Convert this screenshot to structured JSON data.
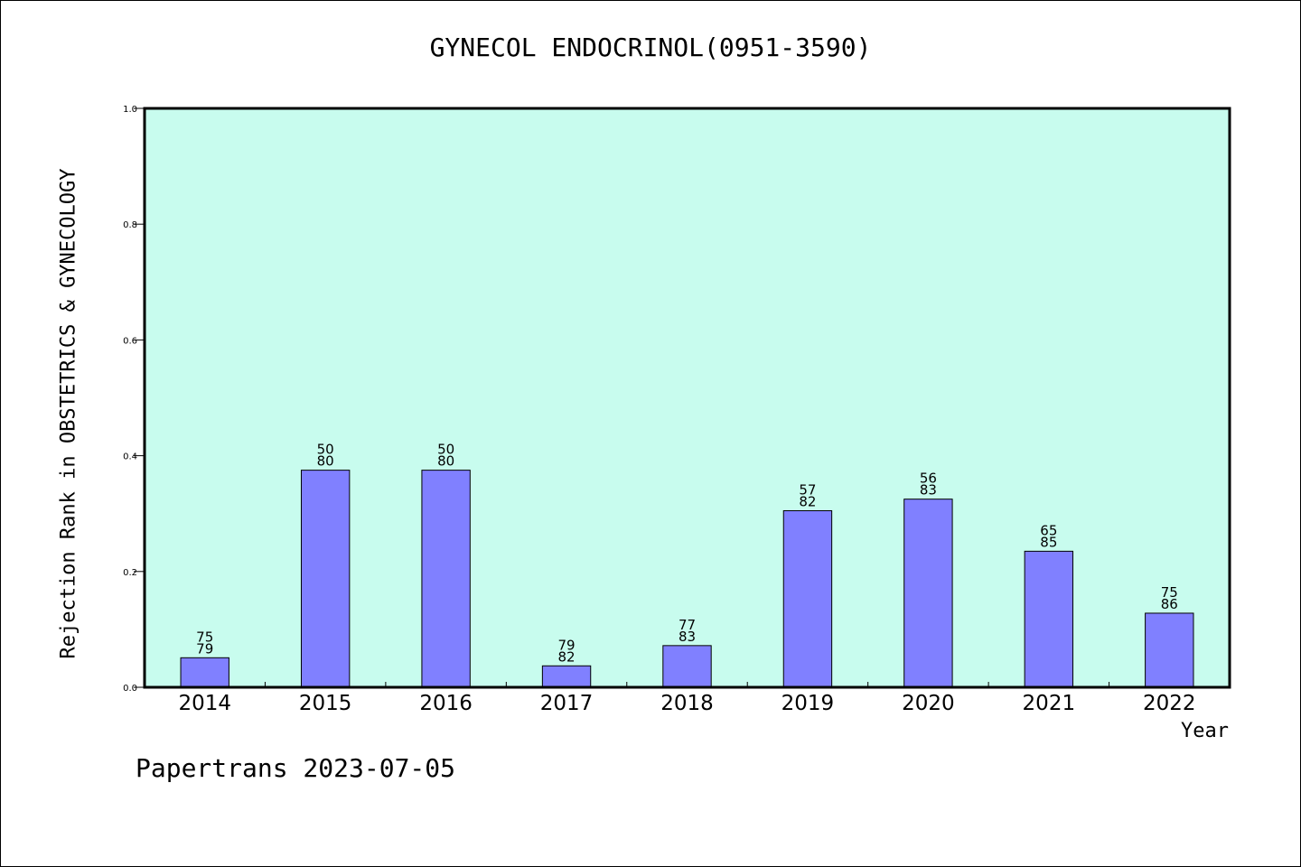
{
  "chart_data": {
    "type": "bar",
    "title": "GYNECOL ENDOCRINOL(0951-3590)",
    "ylabel": "Rejection Rank in OBSTETRICS & GYNECOLOGY",
    "xlabel": "Year",
    "ylim": [
      0,
      1.0
    ],
    "yticks": [
      "0.0",
      "0.2",
      "0.4",
      "0.6",
      "0.8",
      "1.0"
    ],
    "categories": [
      "2014",
      "2015",
      "2016",
      "2017",
      "2018",
      "2019",
      "2020",
      "2021",
      "2022"
    ],
    "values": [
      0.051,
      0.375,
      0.375,
      0.037,
      0.072,
      0.305,
      0.325,
      0.235,
      0.128
    ],
    "labels_top": [
      "75",
      "50",
      "50",
      "79",
      "77",
      "57",
      "56",
      "65",
      "75"
    ],
    "labels_bottom": [
      "79",
      "80",
      "80",
      "82",
      "83",
      "82",
      "83",
      "85",
      "86"
    ],
    "colors": {
      "plot_bg": "#c8fcee",
      "bar_fill": "#8080ff",
      "bar_stroke": "#000000"
    },
    "grid": false
  },
  "footer": {
    "text": "Papertrans 2023-07-05"
  }
}
